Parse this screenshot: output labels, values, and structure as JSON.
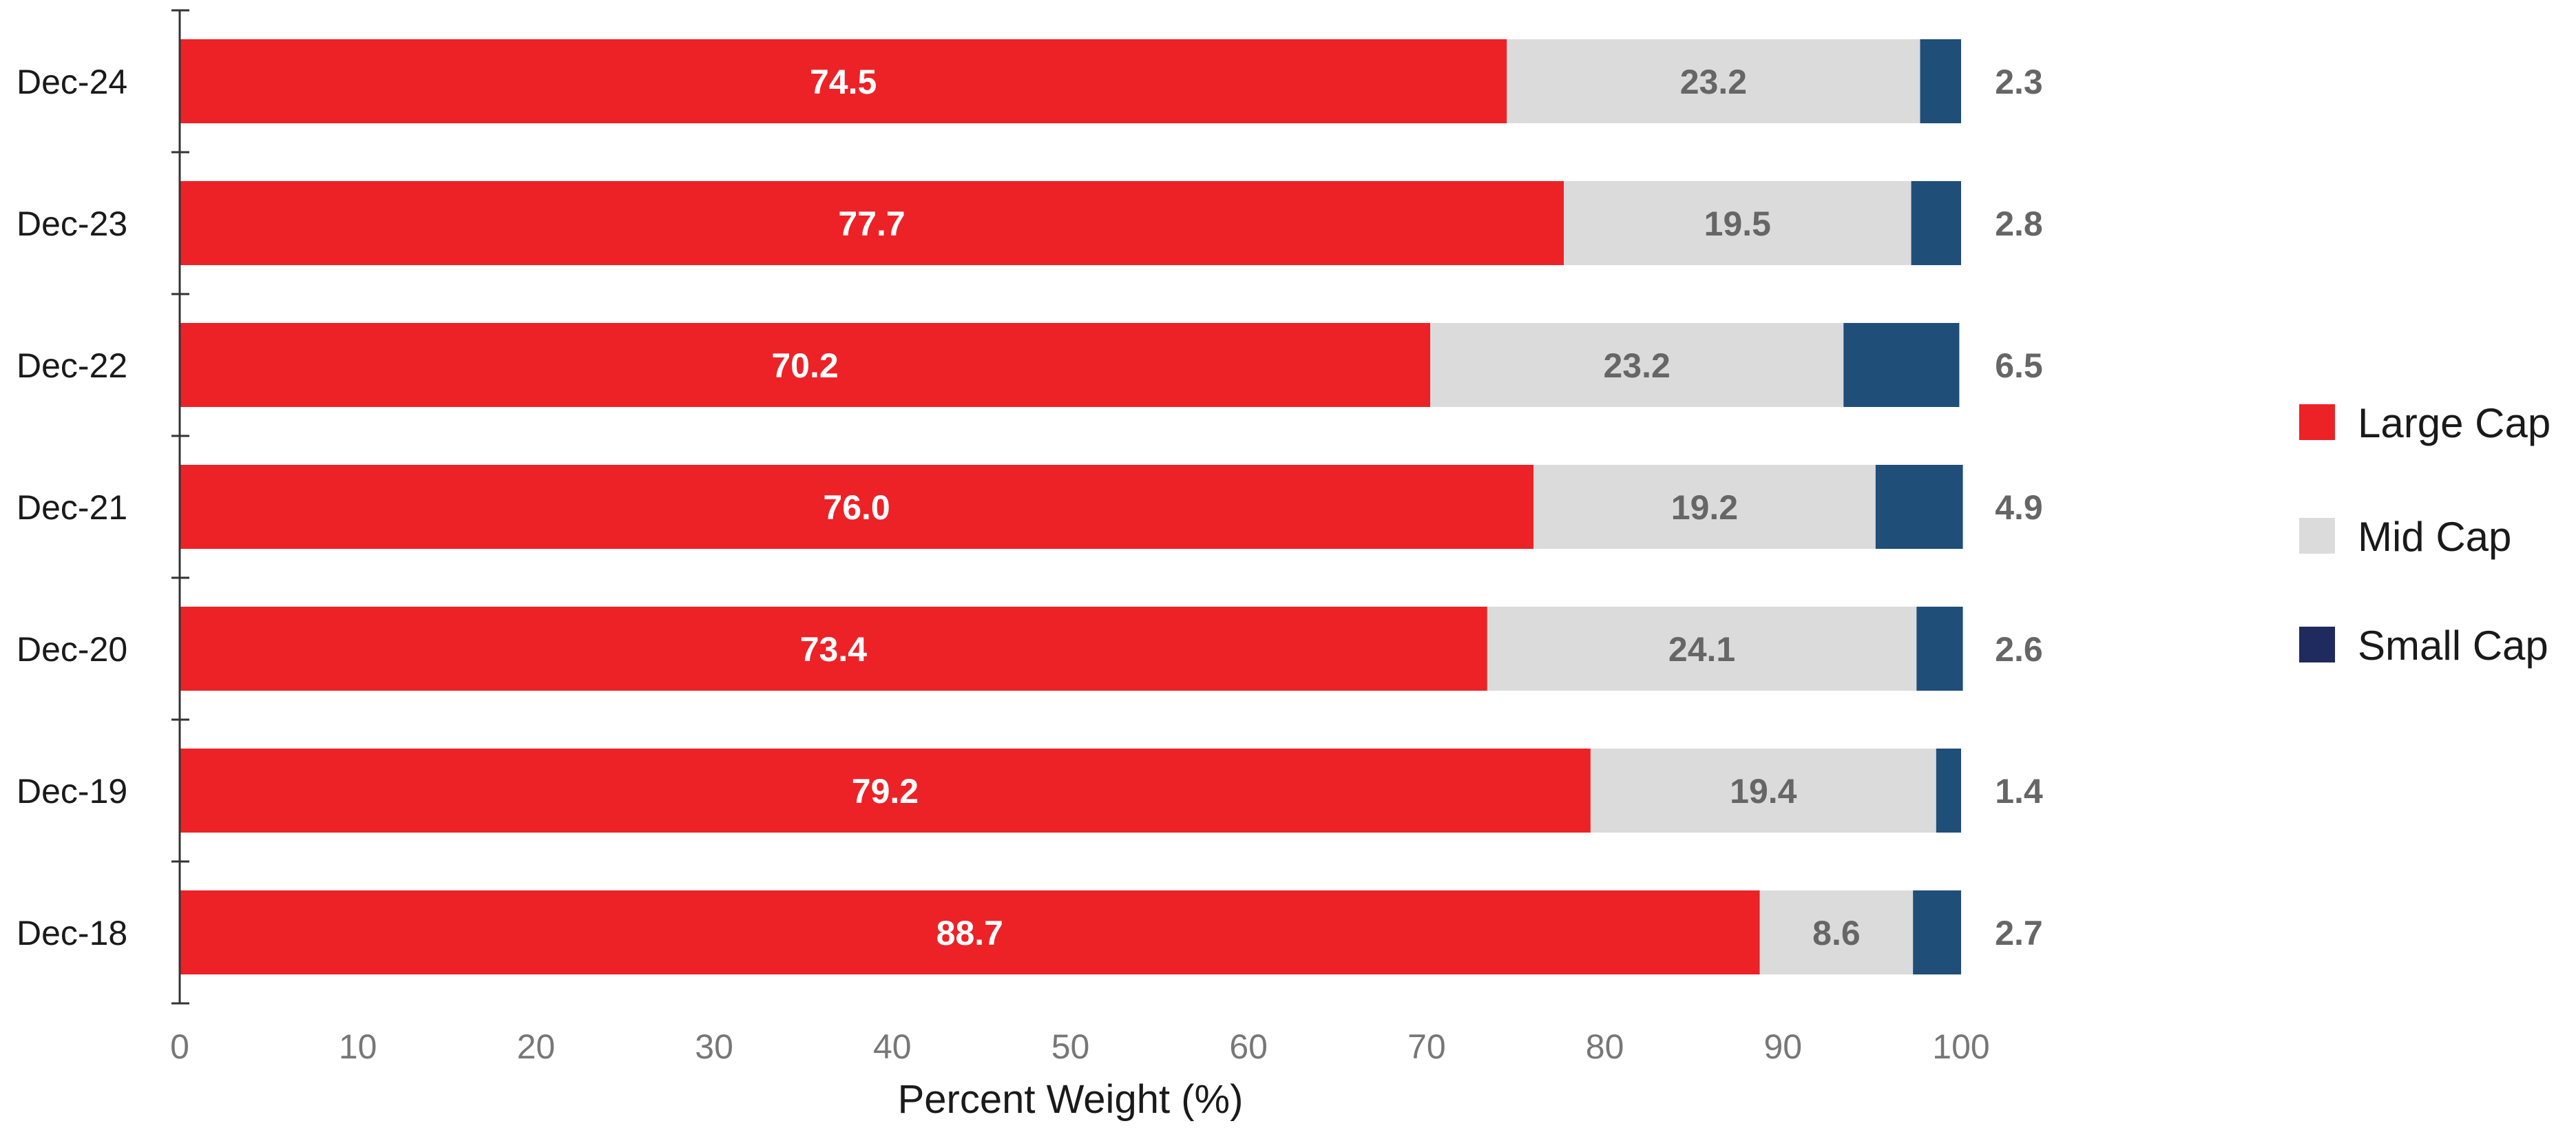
{
  "chart_data": {
    "type": "bar",
    "orientation": "horizontal",
    "stacked": true,
    "categories": [
      "Dec-24",
      "Dec-23",
      "Dec-22",
      "Dec-21",
      "Dec-20",
      "Dec-19",
      "Dec-18"
    ],
    "series": [
      {
        "name": "Large Cap",
        "color": "#ec2227",
        "values": [
          74.5,
          77.7,
          70.2,
          76.0,
          73.4,
          79.2,
          88.7
        ],
        "labels": [
          "74.5",
          "77.7",
          "70.2",
          "76.0",
          "73.4",
          "79.2",
          "88.7"
        ]
      },
      {
        "name": "Mid Cap",
        "color": "#dbdbdb",
        "values": [
          23.2,
          19.5,
          23.2,
          19.2,
          24.1,
          19.4,
          8.6
        ],
        "labels": [
          "23.2",
          "19.5",
          "23.2",
          "19.2",
          "24.1",
          "19.4",
          "8.6"
        ]
      },
      {
        "name": "Small Cap",
        "color": "#1f4e79",
        "values": [
          2.3,
          2.8,
          6.5,
          4.9,
          2.6,
          1.4,
          2.7
        ],
        "labels": [
          "2.3",
          "2.8",
          "6.5",
          "4.9",
          "2.6",
          "1.4",
          "2.7"
        ]
      }
    ],
    "legend_swatches": [
      "#ec2227",
      "#dbdbdb",
      "#1f2a5e"
    ],
    "xlabel": "Percent Weight (%)",
    "ylabel": "",
    "title": "",
    "xlim": [
      0,
      100
    ],
    "xticks": [
      "0",
      "10",
      "20",
      "30",
      "40",
      "50",
      "60",
      "70",
      "80",
      "90",
      "100"
    ],
    "grid": false,
    "legend_position": "right"
  }
}
